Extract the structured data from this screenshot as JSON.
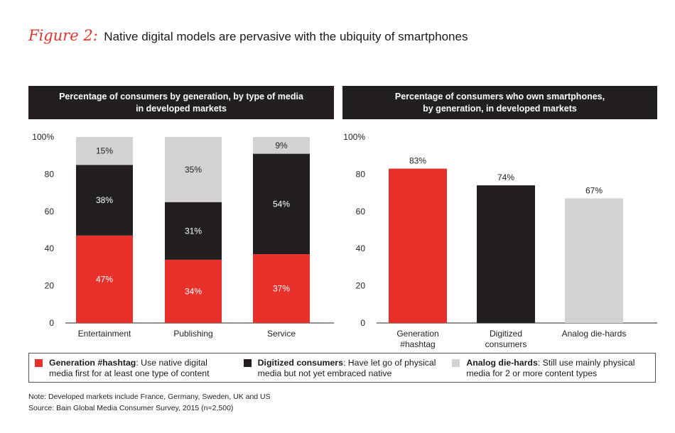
{
  "figure": {
    "label": "Figure 2:",
    "title": "Native digital models are pervasive with the ubiquity of smartphones"
  },
  "colors": {
    "hashtag": "#e8312a",
    "digitized": "#231f20",
    "analog": "#d2d2d2",
    "header_bg": "#231f20"
  },
  "chart_data": [
    {
      "type": "bar",
      "stacked": true,
      "title_lines": [
        "Percentage of consumers by generation, by type of media",
        "in developed markets"
      ],
      "categories": [
        "Entertainment",
        "Publishing",
        "Service"
      ],
      "series": [
        {
          "name": "Generation #hashtag",
          "values": [
            47,
            34,
            37
          ],
          "labels": [
            "47%",
            "34%",
            "37%"
          ]
        },
        {
          "name": "Digitized consumers",
          "values": [
            38,
            31,
            54
          ],
          "labels": [
            "38%",
            "31%",
            "54%"
          ]
        },
        {
          "name": "Analog die-hards",
          "values": [
            15,
            35,
            9
          ],
          "labels": [
            "15%",
            "35%",
            "9%"
          ]
        }
      ],
      "ylim": [
        0,
        100
      ],
      "yticks": [
        "0",
        "20",
        "40",
        "60",
        "80",
        "100%"
      ]
    },
    {
      "type": "bar",
      "title_lines": [
        "Percentage of consumers who own smartphones,",
        "by generation, in developed markets"
      ],
      "categories": [
        [
          "Generation",
          "#hashtag"
        ],
        [
          "Digitized",
          "consumers"
        ],
        [
          "Analog die-hards"
        ]
      ],
      "values": [
        83,
        74,
        67
      ],
      "labels": [
        "83%",
        "74%",
        "67%"
      ],
      "ylim": [
        0,
        100
      ],
      "yticks": [
        "0",
        "20",
        "40",
        "60",
        "80",
        "100%"
      ]
    }
  ],
  "legend": [
    {
      "name": "Generation #hashtag",
      "desc_line1": ": Use native digital",
      "desc_line2": "media first for at least one type of content"
    },
    {
      "name": "Digitized consumers",
      "desc_line1": ": Have let go of physical",
      "desc_line2": "media but not yet embraced native"
    },
    {
      "name": "Analog die-hards",
      "desc_line1": ": Still use mainly physical",
      "desc_line2": "media for 2 or more content types"
    }
  ],
  "notes": {
    "note": "Note: Developed markets include France, Germany, Sweden, UK and US",
    "source": "Source: Bain Global Media Consumer Survey, 2015 (n=2,500)"
  }
}
